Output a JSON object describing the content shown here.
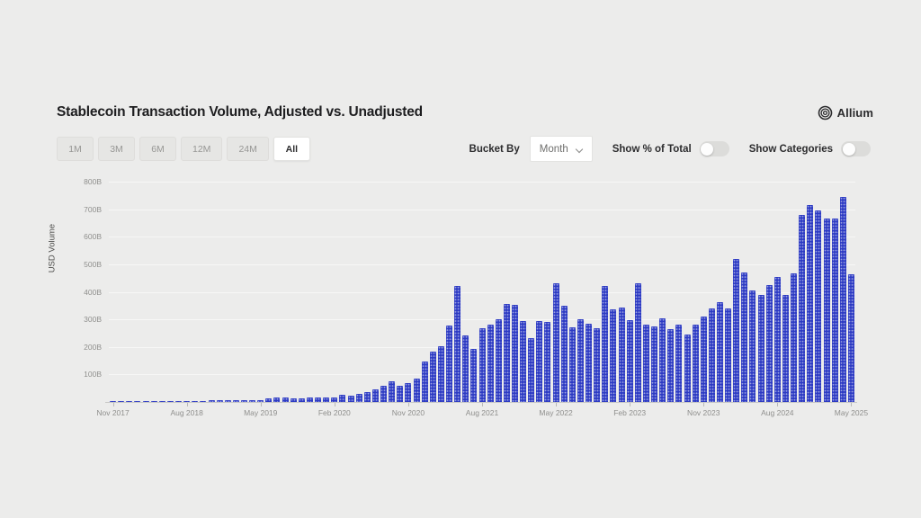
{
  "header": {
    "title": "Stablecoin Transaction Volume, Adjusted vs. Unadjusted",
    "brand": "Allium"
  },
  "controls": {
    "range_buttons": [
      "1M",
      "3M",
      "6M",
      "12M",
      "24M",
      "All"
    ],
    "active_range": "All",
    "bucket_by_label": "Bucket By",
    "bucket_value": "Month",
    "toggles": [
      {
        "label": "Show % of Total",
        "on": false
      },
      {
        "label": "Show Categories",
        "on": false
      }
    ]
  },
  "chart_data": {
    "type": "bar",
    "title": "Stablecoin Transaction Volume, Adjusted vs. Unadjusted",
    "xlabel": "",
    "ylabel": "USD Volume",
    "unit": "B (USD billions)",
    "ylim": [
      0,
      800
    ],
    "grid": true,
    "bar_color": "#2c3ac3",
    "y_tick_values": [
      100,
      200,
      300,
      400,
      500,
      600,
      700,
      800
    ],
    "y_tick_labels": [
      "100B",
      "200B",
      "300B",
      "400B",
      "500B",
      "600B",
      "700B",
      "800B"
    ],
    "x_tick_indices": [
      0,
      9,
      18,
      27,
      36,
      45,
      54,
      63,
      72,
      81,
      90
    ],
    "x_tick_labels": [
      "Nov 2017",
      "Aug 2018",
      "May 2019",
      "Feb 2020",
      "Nov 2020",
      "Aug 2021",
      "May 2022",
      "Feb 2023",
      "Nov 2023",
      "Aug 2024",
      "May 2025"
    ],
    "categories": [
      "Nov 2017",
      "Dec 2017",
      "Jan 2018",
      "Feb 2018",
      "Mar 2018",
      "Apr 2018",
      "May 2018",
      "Jun 2018",
      "Jul 2018",
      "Aug 2018",
      "Sep 2018",
      "Oct 2018",
      "Nov 2018",
      "Dec 2018",
      "Jan 2019",
      "Feb 2019",
      "Mar 2019",
      "Apr 2019",
      "May 2019",
      "Jun 2019",
      "Jul 2019",
      "Aug 2019",
      "Sep 2019",
      "Oct 2019",
      "Nov 2019",
      "Dec 2019",
      "Jan 2020",
      "Feb 2020",
      "Mar 2020",
      "Apr 2020",
      "May 2020",
      "Jun 2020",
      "Jul 2020",
      "Aug 2020",
      "Sep 2020",
      "Oct 2020",
      "Nov 2020",
      "Dec 2020",
      "Jan 2021",
      "Feb 2021",
      "Mar 2021",
      "Apr 2021",
      "May 2021",
      "Jun 2021",
      "Jul 2021",
      "Aug 2021",
      "Sep 2021",
      "Oct 2021",
      "Nov 2021",
      "Dec 2021",
      "Jan 2022",
      "Feb 2022",
      "Mar 2022",
      "Apr 2022",
      "May 2022",
      "Jun 2022",
      "Jul 2022",
      "Aug 2022",
      "Sep 2022",
      "Oct 2022",
      "Nov 2022",
      "Dec 2022",
      "Jan 2023",
      "Feb 2023",
      "Mar 2023",
      "Apr 2023",
      "May 2023",
      "Jun 2023",
      "Jul 2023",
      "Aug 2023",
      "Sep 2023",
      "Oct 2023",
      "Nov 2023",
      "Dec 2023",
      "Jan 2024",
      "Feb 2024",
      "Mar 2024",
      "Apr 2024",
      "May 2024",
      "Jun 2024",
      "Jul 2024",
      "Aug 2024",
      "Sep 2024",
      "Oct 2024",
      "Nov 2024",
      "Dec 2024",
      "Jan 2025",
      "Feb 2025",
      "Mar 2025",
      "Apr 2025",
      "May 2025"
    ],
    "values": [
      2,
      3,
      3,
      2,
      2,
      2,
      3,
      3,
      3,
      3,
      4,
      4,
      5,
      5,
      5,
      6,
      7,
      8,
      8,
      13,
      15,
      17,
      14,
      14,
      17,
      16,
      16,
      17,
      26,
      22,
      28,
      35,
      45,
      58,
      76,
      58,
      68,
      85,
      148,
      183,
      203,
      279,
      421,
      241,
      192,
      268,
      280,
      300,
      356,
      354,
      294,
      232,
      294,
      292,
      430,
      350,
      270,
      300,
      284,
      268,
      420,
      335,
      342,
      297,
      430,
      281,
      275,
      304,
      264,
      280,
      246,
      280,
      309,
      340,
      364,
      340,
      518,
      469,
      404,
      388,
      426,
      453,
      390,
      468,
      680,
      714,
      696,
      666,
      666,
      745,
      465
    ]
  }
}
